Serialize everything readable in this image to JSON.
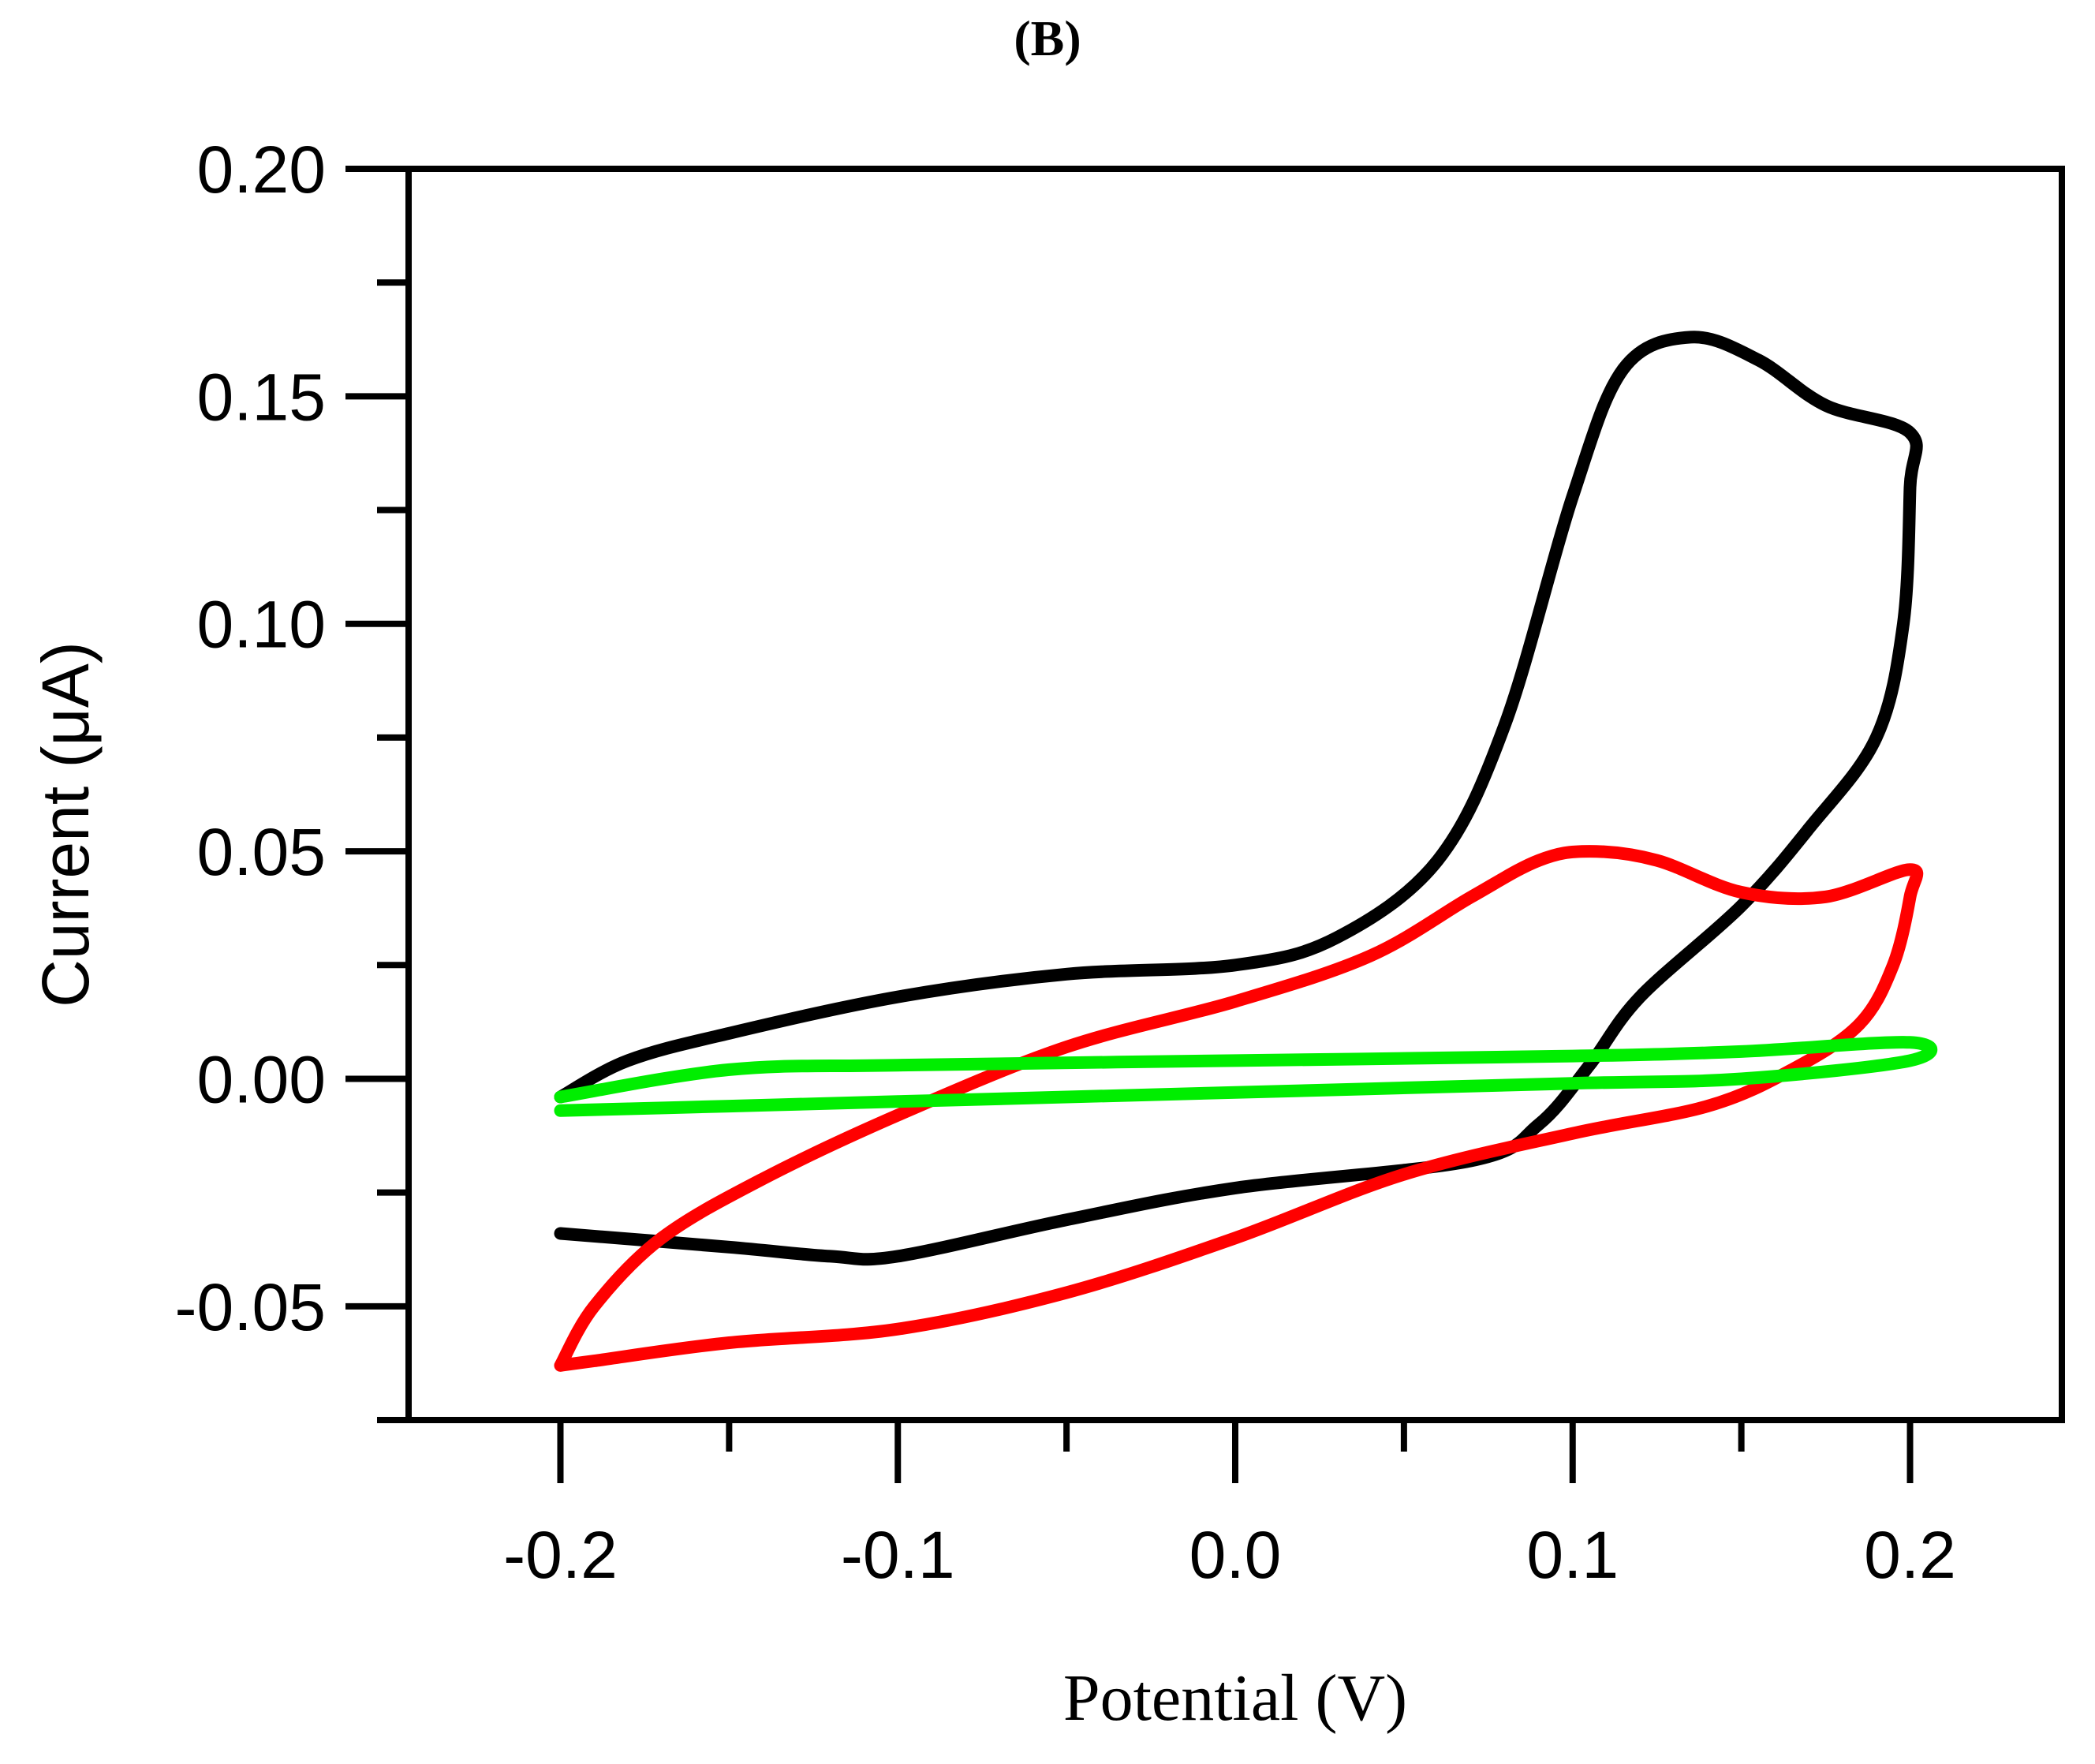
{
  "chart_data": {
    "type": "line",
    "panel_label": "(B)",
    "title": "",
    "xlabel": "Potential (V)",
    "ylabel": "Current (μA)",
    "xlim": [
      -0.245,
      0.245
    ],
    "ylim": [
      -0.075,
      0.2
    ],
    "x_ticks": [
      {
        "value": -0.2,
        "label": "-0.2"
      },
      {
        "value": -0.1,
        "label": "-0.1"
      },
      {
        "value": 0.0,
        "label": "0.0"
      },
      {
        "value": 0.1,
        "label": "0.1"
      },
      {
        "value": 0.2,
        "label": "0.2"
      }
    ],
    "x_minor_ticks": [
      -0.25,
      -0.15,
      -0.05,
      0.05,
      0.15,
      0.25
    ],
    "y_ticks": [
      {
        "value": -0.05,
        "label": "-0.05"
      },
      {
        "value": 0.0,
        "label": "0.00"
      },
      {
        "value": 0.05,
        "label": "0.05"
      },
      {
        "value": 0.1,
        "label": "0.10"
      },
      {
        "value": 0.15,
        "label": "0.15"
      },
      {
        "value": 0.2,
        "label": "0.20"
      }
    ],
    "y_minor_ticks": [
      -0.075,
      -0.025,
      0.025,
      0.075,
      0.125,
      0.175
    ],
    "grid": false,
    "series": [
      {
        "name": "black",
        "color": "#000000",
        "points": [
          [
            -0.2,
            -0.004
          ],
          [
            -0.18,
            0.004
          ],
          [
            -0.15,
            0.01
          ],
          [
            -0.1,
            0.018
          ],
          [
            -0.05,
            0.023
          ],
          [
            0.0,
            0.025
          ],
          [
            0.03,
            0.031
          ],
          [
            0.06,
            0.048
          ],
          [
            0.08,
            0.078
          ],
          [
            0.1,
            0.128
          ],
          [
            0.115,
            0.156
          ],
          [
            0.135,
            0.163
          ],
          [
            0.155,
            0.158
          ],
          [
            0.175,
            0.148
          ],
          [
            0.2,
            0.142
          ],
          [
            0.2,
            0.13
          ],
          [
            0.198,
            0.1
          ],
          [
            0.19,
            0.075
          ],
          [
            0.17,
            0.055
          ],
          [
            0.15,
            0.038
          ],
          [
            0.12,
            0.018
          ],
          [
            0.105,
            0.003
          ],
          [
            0.09,
            -0.01
          ],
          [
            0.07,
            -0.018
          ],
          [
            0.0,
            -0.024
          ],
          [
            -0.05,
            -0.031
          ],
          [
            -0.1,
            -0.039
          ],
          [
            -0.12,
            -0.039
          ],
          [
            -0.15,
            -0.037
          ],
          [
            -0.2,
            -0.034
          ]
        ]
      },
      {
        "name": "red",
        "color": "#ff0000",
        "points": [
          [
            -0.2,
            -0.063
          ],
          [
            -0.19,
            -0.05
          ],
          [
            -0.17,
            -0.035
          ],
          [
            -0.14,
            -0.022
          ],
          [
            -0.1,
            -0.008
          ],
          [
            -0.05,
            0.007
          ],
          [
            0.0,
            0.017
          ],
          [
            0.04,
            0.027
          ],
          [
            0.07,
            0.04
          ],
          [
            0.09,
            0.048
          ],
          [
            0.105,
            0.05
          ],
          [
            0.125,
            0.048
          ],
          [
            0.15,
            0.041
          ],
          [
            0.175,
            0.04
          ],
          [
            0.2,
            0.046
          ],
          [
            0.2,
            0.04
          ],
          [
            0.195,
            0.025
          ],
          [
            0.185,
            0.012
          ],
          [
            0.165,
            0.002
          ],
          [
            0.14,
            -0.006
          ],
          [
            0.1,
            -0.012
          ],
          [
            0.05,
            -0.021
          ],
          [
            0.0,
            -0.035
          ],
          [
            -0.05,
            -0.047
          ],
          [
            -0.1,
            -0.055
          ],
          [
            -0.15,
            -0.058
          ],
          [
            -0.19,
            -0.062
          ],
          [
            -0.2,
            -0.063
          ]
        ]
      },
      {
        "name": "green",
        "color": "#00ee00",
        "points": [
          [
            -0.2,
            -0.004
          ],
          [
            -0.15,
            0.002
          ],
          [
            -0.1,
            0.003
          ],
          [
            0.0,
            0.004
          ],
          [
            0.1,
            0.005
          ],
          [
            0.15,
            0.006
          ],
          [
            0.2,
            0.008
          ],
          [
            0.2,
            0.004
          ],
          [
            0.15,
            0.0
          ],
          [
            0.1,
            -0.001
          ],
          [
            0.0,
            -0.003
          ],
          [
            -0.1,
            -0.005
          ],
          [
            -0.15,
            -0.006
          ],
          [
            -0.2,
            -0.007
          ]
        ]
      }
    ]
  }
}
